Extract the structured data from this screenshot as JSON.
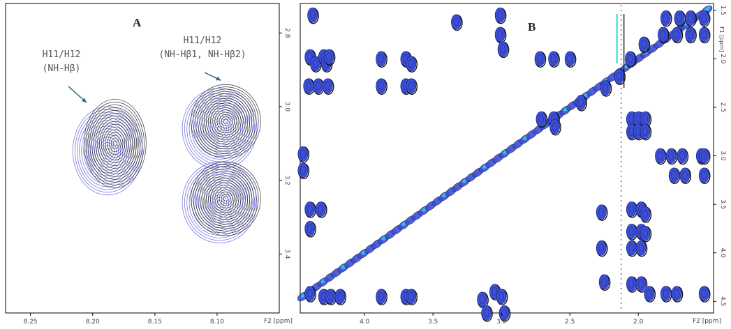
{
  "chart_data": [
    {
      "panel_label": "A",
      "type": "contour",
      "x_axis": {
        "label": "F2 [ppm]",
        "range": [
          8.27,
          8.05
        ],
        "ticks": [
          8.25,
          8.2,
          8.15,
          8.1
        ],
        "tick_labels": [
          "8.25",
          "8.20",
          "8.15",
          "8.10"
        ]
      },
      "y_axis": {
        "label": "",
        "side": "right",
        "range": [
          2.72,
          3.56
        ],
        "ticks": [
          2.8,
          3.0,
          3.2,
          3.4
        ],
        "tick_labels": [
          "2.8",
          "3.0",
          "3.2",
          "3.4"
        ]
      },
      "annotations": [
        {
          "lines": [
            "H11/H12",
            "(NH-Hβ)"
          ],
          "arrow_to": [
            8.205,
            3.0
          ]
        },
        {
          "lines": [
            "H11/H12",
            "(NH-Hβ1, NH-Hβ2)"
          ],
          "arrow_to": [
            8.097,
            2.94
          ]
        }
      ],
      "peaks": [
        {
          "x": 8.188,
          "y": 3.12,
          "spread_x": 0.028,
          "spread_y": 0.12,
          "color": "blue"
        },
        {
          "x": 8.182,
          "y": 3.1,
          "spread_x": 0.025,
          "spread_y": 0.12,
          "color": "black"
        },
        {
          "x": 8.098,
          "y": 3.06,
          "spread_x": 0.03,
          "spread_y": 0.11,
          "color": "blue"
        },
        {
          "x": 8.093,
          "y": 3.04,
          "spread_x": 0.028,
          "spread_y": 0.1,
          "color": "black"
        },
        {
          "x": 8.098,
          "y": 3.26,
          "spread_x": 0.03,
          "spread_y": 0.11,
          "color": "blue"
        },
        {
          "x": 8.093,
          "y": 3.25,
          "spread_x": 0.028,
          "spread_y": 0.1,
          "color": "black"
        }
      ],
      "colors": {
        "blue": "#4a4ad8",
        "black": "#111111",
        "text": "#555555",
        "arrow": "#2a6a78"
      }
    },
    {
      "panel_label": "B",
      "type": "contour",
      "x_axis": {
        "label": "F2 [ppm]",
        "range": [
          4.47,
          1.45
        ],
        "ticks": [
          4.0,
          3.5,
          3.0,
          2.5,
          2.0
        ],
        "tick_labels": [
          "4.0",
          "3.5",
          "3.0",
          "2.5",
          "2.0"
        ]
      },
      "y_axis": {
        "label": "F1 [ppm]",
        "side": "right",
        "range": [
          1.43,
          4.62
        ],
        "ticks": [
          1.5,
          2.0,
          2.5,
          3.0,
          3.5,
          4.0,
          4.5
        ],
        "tick_labels": [
          "1.5",
          "2.0",
          "2.5",
          "3.0",
          "3.5",
          "4.0",
          "4.5"
        ]
      },
      "diagonal": {
        "from": [
          4.45,
          4.45
        ],
        "to": [
          1.5,
          1.5
        ]
      },
      "peaks": [
        [
          4.38,
          1.55
        ],
        [
          3.33,
          1.62
        ],
        [
          3.01,
          1.55
        ],
        [
          3.01,
          1.75
        ],
        [
          2.99,
          1.9
        ],
        [
          4.4,
          1.98
        ],
        [
          4.36,
          2.05
        ],
        [
          4.3,
          1.98
        ],
        [
          4.28,
          2.05
        ],
        [
          4.26,
          1.98
        ],
        [
          3.88,
          2.0
        ],
        [
          3.7,
          2.0
        ],
        [
          3.66,
          2.05
        ],
        [
          2.72,
          2.0
        ],
        [
          2.62,
          2.0
        ],
        [
          2.5,
          2.0
        ],
        [
          4.41,
          2.28
        ],
        [
          4.34,
          2.28
        ],
        [
          4.27,
          2.28
        ],
        [
          3.88,
          2.28
        ],
        [
          3.7,
          2.28
        ],
        [
          3.66,
          2.28
        ],
        [
          2.71,
          2.62
        ],
        [
          2.62,
          2.62
        ],
        [
          2.61,
          2.7
        ],
        [
          2.05,
          2.62
        ],
        [
          2.0,
          2.62
        ],
        [
          1.95,
          2.62
        ],
        [
          2.05,
          2.75
        ],
        [
          2.0,
          2.75
        ],
        [
          1.95,
          2.75
        ],
        [
          4.45,
          2.98
        ],
        [
          4.45,
          3.15
        ],
        [
          1.84,
          3.0
        ],
        [
          1.76,
          3.0
        ],
        [
          1.68,
          3.0
        ],
        [
          1.54,
          3.0
        ],
        [
          1.52,
          3.0
        ],
        [
          1.74,
          3.2
        ],
        [
          1.66,
          3.2
        ],
        [
          1.52,
          3.2
        ],
        [
          4.4,
          3.55
        ],
        [
          4.32,
          3.55
        ],
        [
          4.4,
          3.75
        ],
        [
          2.27,
          3.58
        ],
        [
          2.05,
          3.55
        ],
        [
          1.98,
          3.55
        ],
        [
          1.95,
          3.6
        ],
        [
          2.05,
          3.78
        ],
        [
          1.98,
          3.78
        ],
        [
          1.95,
          3.8
        ],
        [
          2.27,
          3.95
        ],
        [
          2.05,
          3.95
        ],
        [
          1.98,
          3.95
        ],
        [
          4.4,
          4.42
        ],
        [
          4.3,
          4.45
        ],
        [
          4.25,
          4.45
        ],
        [
          4.18,
          4.45
        ],
        [
          3.88,
          4.45
        ],
        [
          3.7,
          4.45
        ],
        [
          3.66,
          4.45
        ],
        [
          3.14,
          4.48
        ],
        [
          3.05,
          4.4
        ],
        [
          3.0,
          4.45
        ],
        [
          2.25,
          4.3
        ],
        [
          2.05,
          4.32
        ],
        [
          1.98,
          4.32
        ],
        [
          1.92,
          4.42
        ],
        [
          1.8,
          4.42
        ],
        [
          1.72,
          4.42
        ],
        [
          1.52,
          4.42
        ],
        [
          1.8,
          1.58
        ],
        [
          1.7,
          1.58
        ],
        [
          1.62,
          1.58
        ],
        [
          1.52,
          1.58
        ],
        [
          1.82,
          1.75
        ],
        [
          1.72,
          1.75
        ],
        [
          1.62,
          1.75
        ],
        [
          1.52,
          1.75
        ],
        [
          1.96,
          1.85
        ],
        [
          2.06,
          2.0
        ],
        [
          2.14,
          2.18
        ],
        [
          2.24,
          2.3
        ],
        [
          2.42,
          2.45
        ],
        [
          3.11,
          4.62
        ],
        [
          2.98,
          4.62
        ]
      ],
      "colors": {
        "blue": "#3d4fd6",
        "cyan": "#2fd0e6",
        "black": "#111111"
      }
    }
  ]
}
